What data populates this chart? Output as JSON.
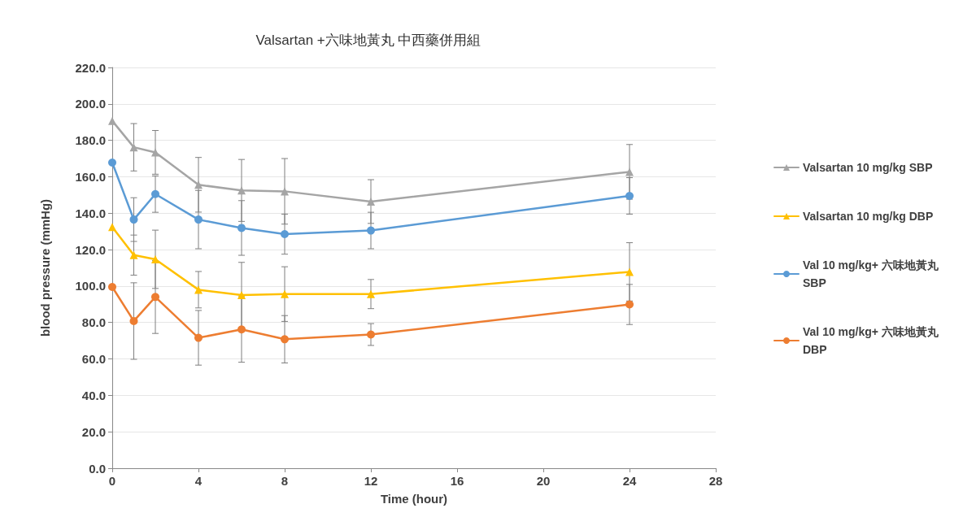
{
  "chart_data": {
    "type": "line",
    "title": "Valsartan +六味地黃丸 中西藥併用組",
    "xlabel": "Time (hour)",
    "ylabel": "blood pressure (mmHg)",
    "x": [
      0,
      1,
      2,
      4,
      6,
      8,
      12,
      24
    ],
    "series": [
      {
        "name": "Valsartan 10 mg/kg SBP",
        "color": "#a5a5a5",
        "marker": "triangle",
        "values": [
          190.7,
          176.2,
          173.4,
          155.6,
          152.5,
          152,
          146.4,
          162.7
        ],
        "errors": [
          null,
          13,
          12,
          15,
          17,
          18,
          12,
          15
        ]
      },
      {
        "name": "Valsartan 10 mg/kg DBP",
        "color": "#ffc000",
        "marker": "triangle",
        "values": [
          132.4,
          117,
          114.7,
          98,
          95,
          95.6,
          95.6,
          107.8
        ],
        "errors": [
          null,
          11,
          16,
          10,
          18,
          15,
          8,
          16
        ]
      },
      {
        "name": "Val 10 mg/kg+ 六味地黃丸 SBP",
        "color": "#5b9bd5",
        "marker": "circle",
        "values": [
          167.8,
          136.5,
          150.5,
          136.5,
          131.9,
          128.5,
          130.5,
          149.5
        ],
        "errors": [
          null,
          12,
          10,
          16,
          15,
          11,
          10,
          10
        ]
      },
      {
        "name": "Val 10 mg/kg+ 六味地黃丸 DBP",
        "color": "#ed7d31",
        "marker": "circle",
        "values": [
          99.5,
          80.8,
          94,
          71.6,
          76.2,
          70.8,
          73.4,
          89.9
        ],
        "errors": [
          null,
          21,
          20,
          15,
          18,
          13,
          6,
          11
        ]
      }
    ],
    "xlim": [
      0,
      28
    ],
    "xticks": [
      0,
      4,
      8,
      12,
      16,
      20,
      24,
      28
    ],
    "ylim": [
      0,
      220
    ],
    "yticks": [
      {
        "value": 0,
        "label": "0.0"
      },
      {
        "value": 20,
        "label": "20.0"
      },
      {
        "value": 40,
        "label": "40.0"
      },
      {
        "value": 60,
        "label": "60.0"
      },
      {
        "value": 80,
        "label": "80.0"
      },
      {
        "value": 100,
        "label": "100.0"
      },
      {
        "value": 120,
        "label": "120.0"
      },
      {
        "value": 140,
        "label": "140.0"
      },
      {
        "value": 160,
        "label": "160.0"
      },
      {
        "value": 180,
        "label": "180.0"
      },
      {
        "value": 200,
        "label": "200.0"
      },
      {
        "value": 220,
        "label": "220.0"
      }
    ],
    "grid": "y",
    "legend": "right",
    "line_style": "solid"
  }
}
